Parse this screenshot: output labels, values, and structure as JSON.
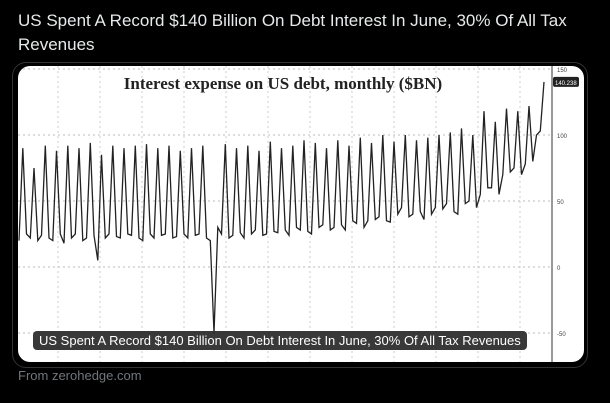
{
  "post": {
    "title": "US Spent A Record $140 Billion On Debt Interest In June, 30% Of All Tax Revenues"
  },
  "card": {
    "caption": "US Spent A Record $140 Billion On Debt Interest In June, 30% Of All Tax Revenues",
    "source": "From zerohedge.com"
  },
  "chart_data": {
    "type": "line",
    "title": "Interest expense on US debt, monthly ($BN)",
    "ylim": [
      -55,
      152
    ],
    "yticks": [
      "-50",
      "0",
      "50",
      "100",
      "150"
    ],
    "grid": true,
    "last_value_label": "140.238",
    "line_color": "#222222",
    "values": [
      20,
      90,
      25,
      22,
      75,
      20,
      24,
      92,
      22,
      20,
      88,
      25,
      18,
      92,
      22,
      25,
      90,
      20,
      22,
      94,
      24,
      5,
      85,
      22,
      25,
      92,
      23,
      22,
      90,
      25,
      24,
      92,
      22,
      20,
      93,
      25,
      22,
      90,
      24,
      25,
      92,
      22,
      23,
      88,
      25,
      22,
      90,
      24,
      25,
      92,
      22,
      20,
      -50,
      30,
      25,
      93,
      22,
      24,
      90,
      26,
      22,
      92,
      25,
      28,
      88,
      24,
      25,
      95,
      27,
      26,
      90,
      28,
      24,
      92,
      30,
      28,
      96,
      27,
      25,
      94,
      30,
      32,
      90,
      28,
      30,
      96,
      32,
      28,
      92,
      35,
      33,
      98,
      30,
      35,
      94,
      36,
      38,
      100,
      35,
      34,
      95,
      40,
      45,
      100,
      38,
      40,
      96,
      42,
      36,
      98,
      40,
      45,
      100,
      44,
      48,
      102,
      42,
      40,
      105,
      48,
      50,
      100,
      45,
      55,
      118,
      60,
      60,
      110,
      55,
      70,
      120,
      72,
      75,
      118,
      70,
      78,
      122,
      80,
      100,
      103,
      140.238
    ]
  }
}
